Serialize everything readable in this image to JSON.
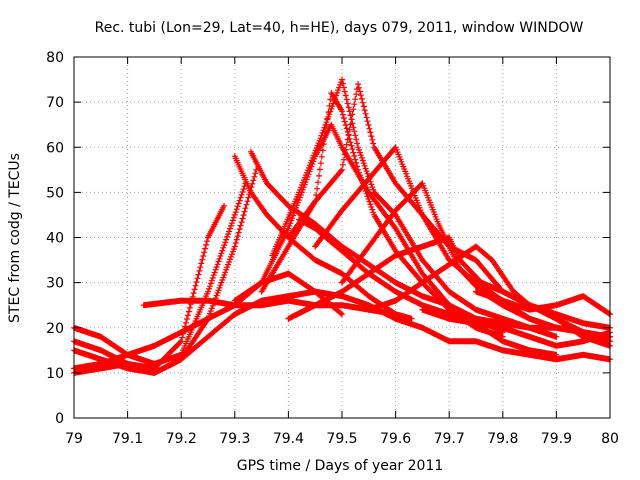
{
  "chart_data": {
    "type": "scatter",
    "title": "Rec. tubi (Lon=29, Lat=40, h=HE), days 079, 2011, window WINDOW",
    "xlabel": "GPS time / Days of year 2011",
    "ylabel": "STEC from codg / TECUs",
    "xlim": [
      79,
      80
    ],
    "ylim": [
      0,
      80
    ],
    "xticks": [
      "79",
      "79.1",
      "79.2",
      "79.3",
      "79.4",
      "79.5",
      "79.6",
      "79.7",
      "79.8",
      "79.9",
      "80"
    ],
    "yticks": [
      "0",
      "10",
      "20",
      "30",
      "40",
      "50",
      "60",
      "70",
      "80"
    ],
    "grid": true,
    "marker": "plus",
    "color": "#ff0000",
    "series": [
      {
        "points": [
          [
            79.0,
            17
          ],
          [
            79.05,
            15
          ],
          [
            79.1,
            12
          ],
          [
            79.15,
            11
          ],
          [
            79.2,
            17
          ],
          [
            79.25,
            40
          ],
          [
            79.28,
            47
          ]
        ]
      },
      {
        "points": [
          [
            79.0,
            20
          ],
          [
            79.05,
            18
          ],
          [
            79.1,
            14
          ],
          [
            79.15,
            12
          ],
          [
            79.2,
            14
          ],
          [
            79.25,
            28
          ],
          [
            79.3,
            45
          ],
          [
            79.32,
            52
          ]
        ]
      },
      {
        "points": [
          [
            79.0,
            15
          ],
          [
            79.05,
            13
          ],
          [
            79.1,
            11
          ],
          [
            79.15,
            10
          ],
          [
            79.2,
            13
          ],
          [
            79.25,
            22
          ],
          [
            79.3,
            38
          ],
          [
            79.34,
            55
          ]
        ]
      },
      {
        "points": [
          [
            79.0,
            11
          ],
          [
            79.05,
            12
          ],
          [
            79.1,
            14
          ],
          [
            79.15,
            16
          ],
          [
            79.2,
            19
          ],
          [
            79.25,
            22
          ],
          [
            79.3,
            25
          ],
          [
            79.35,
            30
          ],
          [
            79.4,
            32
          ],
          [
            79.45,
            28
          ],
          [
            79.5,
            23
          ]
        ]
      },
      {
        "points": [
          [
            79.0,
            10
          ],
          [
            79.05,
            11
          ],
          [
            79.1,
            12
          ],
          [
            79.15,
            10
          ],
          [
            79.2,
            13
          ],
          [
            79.25,
            18
          ],
          [
            79.3,
            23
          ],
          [
            79.35,
            26
          ],
          [
            79.4,
            27
          ],
          [
            79.45,
            28
          ],
          [
            79.5,
            27
          ],
          [
            79.55,
            25
          ],
          [
            79.6,
            22
          ],
          [
            79.65,
            20
          ],
          [
            79.7,
            17
          ],
          [
            79.75,
            17
          ],
          [
            79.8,
            15
          ],
          [
            79.85,
            14
          ],
          [
            79.9,
            13
          ],
          [
            79.95,
            14
          ],
          [
            80.0,
            13
          ]
        ]
      },
      {
        "points": [
          [
            79.13,
            25
          ],
          [
            79.2,
            26
          ],
          [
            79.25,
            26
          ],
          [
            79.3,
            25
          ],
          [
            79.35,
            25
          ],
          [
            79.4,
            26
          ],
          [
            79.45,
            25
          ],
          [
            79.5,
            25
          ],
          [
            79.55,
            24
          ],
          [
            79.6,
            23
          ]
        ]
      },
      {
        "points": [
          [
            79.3,
            58
          ],
          [
            79.33,
            50
          ],
          [
            79.36,
            45
          ],
          [
            79.4,
            40
          ],
          [
            79.45,
            35
          ],
          [
            79.5,
            32
          ],
          [
            79.55,
            27
          ],
          [
            79.6,
            23
          ],
          [
            79.63,
            22
          ]
        ]
      },
      {
        "points": [
          [
            79.33,
            59
          ],
          [
            79.36,
            52
          ],
          [
            79.4,
            47
          ],
          [
            79.45,
            43
          ],
          [
            79.5,
            38
          ],
          [
            79.55,
            34
          ],
          [
            79.6,
            30
          ],
          [
            79.65,
            27
          ],
          [
            79.7,
            25
          ],
          [
            79.75,
            21
          ],
          [
            79.8,
            17
          ],
          [
            79.85,
            15
          ],
          [
            79.9,
            14
          ]
        ]
      },
      {
        "points": [
          [
            79.3,
            26
          ],
          [
            79.35,
            30
          ],
          [
            79.4,
            42
          ],
          [
            79.45,
            58
          ],
          [
            79.48,
            65
          ],
          [
            79.5,
            60
          ],
          [
            79.55,
            50
          ],
          [
            79.6,
            42
          ],
          [
            79.65,
            32
          ],
          [
            79.7,
            25
          ],
          [
            79.75,
            22
          ],
          [
            79.8,
            19
          ]
        ]
      },
      {
        "points": [
          [
            79.35,
            28
          ],
          [
            79.4,
            38
          ],
          [
            79.45,
            48
          ],
          [
            79.48,
            72
          ],
          [
            79.5,
            68
          ],
          [
            79.53,
            55
          ],
          [
            79.56,
            45
          ],
          [
            79.6,
            37
          ],
          [
            79.65,
            30
          ],
          [
            79.7,
            24
          ],
          [
            79.75,
            20
          ],
          [
            79.8,
            18
          ]
        ]
      },
      {
        "points": [
          [
            79.37,
            36
          ],
          [
            79.42,
            50
          ],
          [
            79.46,
            62
          ],
          [
            79.5,
            75
          ],
          [
            79.53,
            60
          ],
          [
            79.56,
            50
          ],
          [
            79.6,
            45
          ],
          [
            79.65,
            35
          ],
          [
            79.7,
            28
          ],
          [
            79.75,
            24
          ],
          [
            79.8,
            22
          ],
          [
            79.85,
            20
          ],
          [
            79.9,
            18
          ]
        ]
      },
      {
        "points": [
          [
            79.4,
            40
          ],
          [
            79.45,
            48
          ],
          [
            79.5,
            55
          ],
          [
            79.53,
            74
          ],
          [
            79.56,
            60
          ],
          [
            79.6,
            52
          ],
          [
            79.65,
            45
          ],
          [
            79.7,
            35
          ],
          [
            79.75,
            30
          ],
          [
            79.8,
            26
          ],
          [
            79.85,
            22
          ],
          [
            79.9,
            20
          ],
          [
            79.95,
            19
          ],
          [
            80.0,
            18
          ]
        ]
      },
      {
        "points": [
          [
            79.45,
            38
          ],
          [
            79.5,
            46
          ],
          [
            79.55,
            53
          ],
          [
            79.6,
            60
          ],
          [
            79.65,
            45
          ],
          [
            79.7,
            38
          ],
          [
            79.75,
            35
          ],
          [
            79.8,
            28
          ],
          [
            79.85,
            25
          ],
          [
            79.9,
            22
          ],
          [
            79.95,
            19
          ],
          [
            80.0,
            18
          ]
        ]
      },
      {
        "points": [
          [
            79.5,
            30
          ],
          [
            79.55,
            38
          ],
          [
            79.6,
            46
          ],
          [
            79.65,
            52
          ],
          [
            79.68,
            43
          ],
          [
            79.72,
            33
          ],
          [
            79.76,
            28
          ],
          [
            79.8,
            25
          ],
          [
            79.85,
            22
          ],
          [
            79.9,
            20
          ],
          [
            79.95,
            19
          ],
          [
            80.0,
            17
          ]
        ]
      },
      {
        "points": [
          [
            79.4,
            22
          ],
          [
            79.45,
            25
          ],
          [
            79.5,
            28
          ],
          [
            79.55,
            32
          ],
          [
            79.6,
            36
          ],
          [
            79.65,
            38
          ],
          [
            79.7,
            40
          ],
          [
            79.72,
            35
          ],
          [
            79.76,
            30
          ],
          [
            79.8,
            28
          ],
          [
            79.85,
            25
          ],
          [
            79.9,
            23
          ],
          [
            79.95,
            21
          ],
          [
            80.0,
            20
          ]
        ]
      },
      {
        "points": [
          [
            79.42,
            44
          ],
          [
            79.45,
            42
          ],
          [
            79.5,
            37
          ],
          [
            79.55,
            32
          ],
          [
            79.6,
            28
          ],
          [
            79.65,
            25
          ],
          [
            79.7,
            23
          ],
          [
            79.75,
            22
          ],
          [
            79.8,
            21
          ],
          [
            79.85,
            20
          ],
          [
            79.9,
            20
          ],
          [
            79.95,
            19
          ],
          [
            80.0,
            18
          ]
        ]
      },
      {
        "points": [
          [
            79.55,
            24
          ],
          [
            79.6,
            26
          ],
          [
            79.65,
            30
          ],
          [
            79.7,
            34
          ],
          [
            79.75,
            38
          ],
          [
            79.78,
            35
          ],
          [
            79.82,
            28
          ],
          [
            79.85,
            25
          ],
          [
            79.9,
            22
          ],
          [
            79.95,
            18
          ],
          [
            80.0,
            16
          ]
        ]
      },
      {
        "points": [
          [
            79.75,
            28
          ],
          [
            79.8,
            26
          ],
          [
            79.85,
            24
          ],
          [
            79.9,
            25
          ],
          [
            79.95,
            27
          ],
          [
            80.0,
            23
          ]
        ]
      },
      {
        "points": [
          [
            79.65,
            24
          ],
          [
            79.7,
            22
          ],
          [
            79.75,
            21
          ],
          [
            79.8,
            20
          ],
          [
            79.85,
            18
          ],
          [
            79.9,
            16
          ],
          [
            79.95,
            17
          ],
          [
            80.0,
            19
          ]
        ]
      }
    ]
  }
}
